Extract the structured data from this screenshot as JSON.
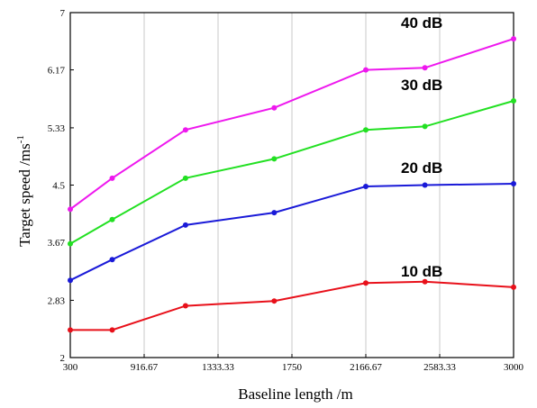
{
  "chart_data": {
    "type": "line",
    "title": "",
    "xlabel": "Baseline length /m",
    "ylabel": "Target speed /ms",
    "ylabel_superscript": "-1",
    "x_ticks": [
      "300",
      "916.67",
      "1333.33",
      "1750",
      "2166.67",
      "2583.33",
      "3000"
    ],
    "y_ticks": [
      "2",
      "2.83",
      "3.67",
      "4.5",
      "5.33",
      "6.17",
      "7"
    ],
    "xlim": [
      300,
      3000
    ],
    "ylim": [
      2,
      7
    ],
    "grid": "vertical lines at x ticks",
    "x": [
      300,
      650,
      1150,
      1650,
      2166.67,
      2500,
      3000
    ],
    "series": [
      {
        "name": "10 dB",
        "color": "#e8101a",
        "values": [
          2.4,
          2.4,
          2.75,
          2.82,
          3.08,
          3.1,
          3.02
        ]
      },
      {
        "name": "20 dB",
        "color": "#1a1ad8",
        "values": [
          3.12,
          3.42,
          3.92,
          4.1,
          4.48,
          4.5,
          4.52
        ]
      },
      {
        "name": "30 dB",
        "color": "#22e022",
        "values": [
          3.65,
          4.0,
          4.6,
          4.88,
          5.3,
          5.35,
          5.72
        ]
      },
      {
        "name": "40 dB",
        "color": "#ee18ee",
        "values": [
          4.15,
          4.6,
          5.3,
          5.62,
          6.17,
          6.2,
          6.62
        ]
      }
    ]
  }
}
